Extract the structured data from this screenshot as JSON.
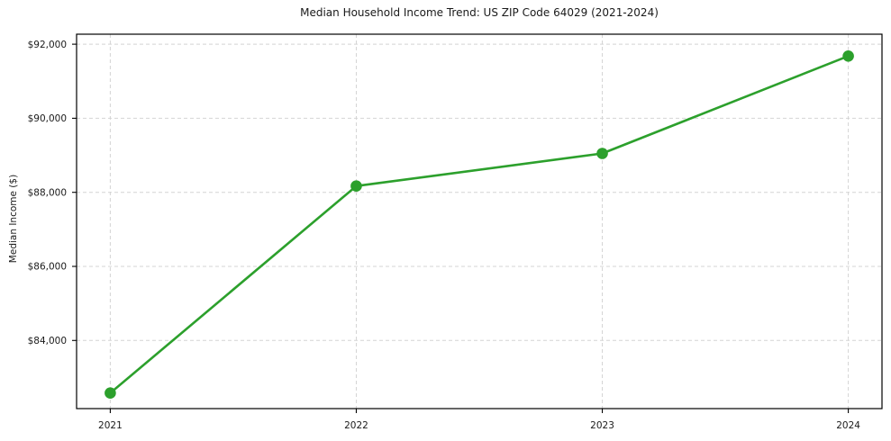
{
  "chart_data": {
    "type": "line",
    "title": "Median Household Income Trend: US ZIP Code 64029 (2021-2024)",
    "xlabel": "",
    "ylabel": "Median Income ($)",
    "categories": [
      "2021",
      "2022",
      "2023",
      "2024"
    ],
    "series": [
      {
        "name": "Median Household Income",
        "values": [
          82580,
          88170,
          89050,
          91680
        ],
        "color": "#2ca02c",
        "marker": "circle",
        "line_width": 2.6,
        "marker_radius": 6.3
      }
    ],
    "yticks": [
      {
        "value": 84000,
        "label": "$84,000"
      },
      {
        "value": 86000,
        "label": "$86,000"
      },
      {
        "value": 88000,
        "label": "$88,000"
      },
      {
        "value": 90000,
        "label": "$90,000"
      },
      {
        "value": 92000,
        "label": "$92,000"
      }
    ],
    "ylim": [
      82160,
      92270
    ],
    "grid": {
      "visible": true,
      "style": "dashed",
      "color": "#d4d4d4"
    },
    "legend_position": "none",
    "colors": {
      "background": "#ffffff",
      "spine": "#000000",
      "tick_text": "#1a1a1a"
    }
  }
}
